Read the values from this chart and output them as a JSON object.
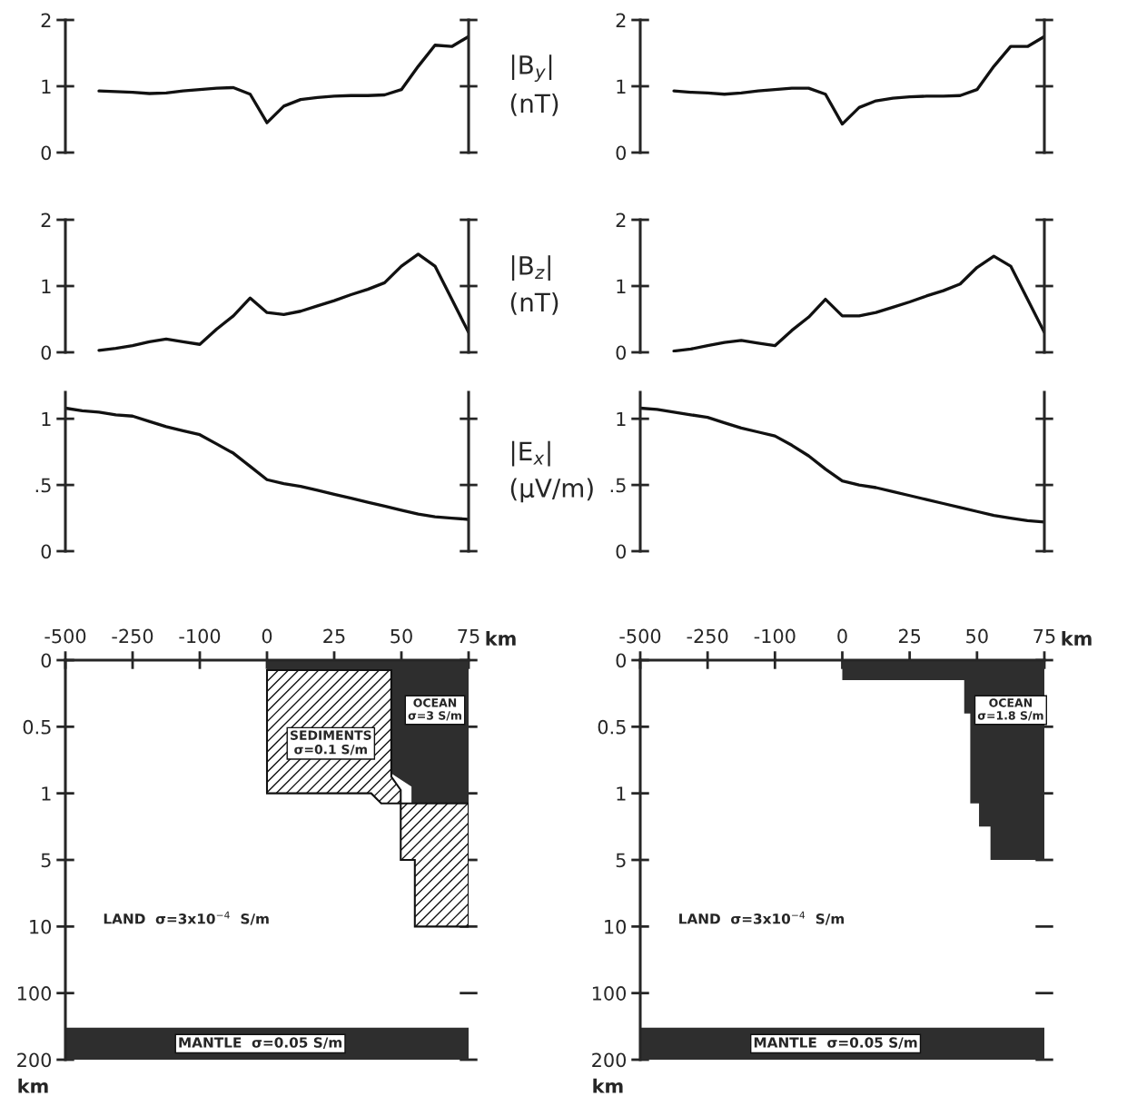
{
  "chart_data": [
    {
      "type": "line",
      "categories": [
        null,
        null,
        null,
        null,
        null,
        null,
        null,
        null,
        null,
        null,
        null,
        null,
        null,
        null,
        null,
        null,
        null,
        null,
        null,
        null,
        null,
        null,
        null,
        null,
        null
      ],
      "series": [
        {
          "color": "#111111",
          "values": [
            null,
            null,
            0.93,
            0.92,
            0.91,
            0.89,
            0.9,
            0.93,
            0.95,
            0.97,
            0.98,
            0.88,
            0.45,
            0.7,
            0.8,
            0.83,
            0.85,
            0.86,
            0.86,
            0.87,
            0.95,
            1.3,
            1.62,
            1.6,
            1.75
          ]
        }
      ],
      "ylim": [
        0,
        2
      ],
      "yticks": [
        0,
        1,
        2
      ],
      "y2label": "|B$_{y}$|\n(nT)",
      "tick_labels": "y",
      "line_style": "solid"
    },
    {
      "type": "line",
      "categories": [
        null,
        null,
        null,
        null,
        null,
        null,
        null,
        null,
        null,
        null,
        null,
        null,
        null,
        null,
        null,
        null,
        null,
        null,
        null,
        null,
        null,
        null,
        null,
        null,
        null
      ],
      "series": [
        {
          "color": "#111111",
          "values": [
            null,
            null,
            0.93,
            0.91,
            0.9,
            0.88,
            0.9,
            0.93,
            0.95,
            0.97,
            0.97,
            0.88,
            0.43,
            0.68,
            0.78,
            0.82,
            0.84,
            0.85,
            0.85,
            0.86,
            0.95,
            1.3,
            1.6,
            1.6,
            1.75
          ]
        }
      ],
      "ylim": [
        0,
        2
      ],
      "yticks": [
        0,
        1,
        2
      ],
      "tick_labels": "y",
      "line_style": "solid"
    },
    {
      "type": "line",
      "categories": [
        null,
        null,
        null,
        null,
        null,
        null,
        null,
        null,
        null,
        null,
        null,
        null,
        null,
        null,
        null,
        null,
        null,
        null,
        null,
        null,
        null,
        null,
        null,
        null,
        null
      ],
      "series": [
        {
          "color": "#111111",
          "values": [
            null,
            null,
            0.03,
            0.06,
            0.1,
            0.16,
            0.2,
            0.16,
            0.12,
            0.35,
            0.55,
            0.82,
            0.6,
            0.57,
            0.62,
            0.7,
            0.78,
            0.87,
            0.95,
            1.05,
            1.3,
            1.48,
            1.3,
            0.8,
            0.3
          ]
        }
      ],
      "ylim": [
        0,
        2
      ],
      "yticks": [
        0,
        1,
        2
      ],
      "y2label": "|B$_{z}$|\n(nT)",
      "tick_labels": "y",
      "line_style": "solid"
    },
    {
      "type": "line",
      "categories": [
        null,
        null,
        null,
        null,
        null,
        null,
        null,
        null,
        null,
        null,
        null,
        null,
        null,
        null,
        null,
        null,
        null,
        null,
        null,
        null,
        null,
        null,
        null,
        null,
        null
      ],
      "series": [
        {
          "color": "#111111",
          "values": [
            null,
            null,
            0.02,
            0.05,
            0.1,
            0.15,
            0.18,
            0.14,
            0.1,
            0.33,
            0.53,
            0.8,
            0.55,
            0.55,
            0.6,
            0.68,
            0.76,
            0.85,
            0.93,
            1.03,
            1.28,
            1.45,
            1.3,
            0.8,
            0.3
          ]
        }
      ],
      "ylim": [
        0,
        2
      ],
      "yticks": [
        0,
        1,
        2
      ],
      "tick_labels": "y",
      "line_style": "solid"
    },
    {
      "type": "line",
      "categories": [
        null,
        null,
        null,
        null,
        null,
        null,
        null,
        null,
        null,
        null,
        null,
        null,
        null,
        null,
        null,
        null,
        null,
        null,
        null,
        null,
        null,
        null,
        null,
        null,
        null
      ],
      "series": [
        {
          "color": "#111111",
          "values": [
            1.08,
            1.06,
            1.05,
            1.03,
            1.02,
            0.98,
            0.94,
            0.91,
            0.88,
            0.81,
            0.74,
            0.64,
            0.54,
            0.51,
            0.49,
            0.46,
            0.43,
            0.4,
            0.37,
            0.34,
            0.31,
            0.28,
            0.26,
            0.25,
            0.24
          ]
        }
      ],
      "ylim": [
        0,
        1.2
      ],
      "yticks": [
        0,
        {
          "value": 0.5,
          "label": ".5"
        },
        1
      ],
      "y2label": "|E$_{x}$|\n(μV/m)",
      "tick_labels": "y",
      "line_style": "solid"
    },
    {
      "type": "line",
      "categories": [
        null,
        null,
        null,
        null,
        null,
        null,
        null,
        null,
        null,
        null,
        null,
        null,
        null,
        null,
        null,
        null,
        null,
        null,
        null,
        null,
        null,
        null,
        null,
        null,
        null
      ],
      "series": [
        {
          "color": "#111111",
          "values": [
            1.08,
            1.07,
            1.05,
            1.03,
            1.01,
            0.97,
            0.93,
            0.9,
            0.87,
            0.8,
            0.72,
            0.62,
            0.53,
            0.5,
            0.48,
            0.45,
            0.42,
            0.39,
            0.36,
            0.33,
            0.3,
            0.27,
            0.25,
            0.23,
            0.22
          ]
        }
      ],
      "ylim": [
        0,
        1.2
      ],
      "yticks": [
        0,
        {
          "value": 0.5,
          "label": ".5"
        },
        1
      ],
      "tick_labels": "y",
      "line_style": "solid"
    },
    {
      "type": "other",
      "categories": [
        "-500",
        "-250",
        "-100",
        "0",
        "25",
        "50",
        "75"
      ],
      "y_categories": [
        "0",
        "0.5",
        "1",
        "5",
        "10",
        "100",
        "200"
      ],
      "xlabel": "km",
      "ylabel": "km",
      "annotations": [
        "OCEAN\nσ=3 S/m",
        "SEDIMENTS\nσ=0.1 S/m",
        "LAND  σ=3x10$^{−4}$  S/m",
        "MANTLE  σ=0.05 S/m"
      ]
    },
    {
      "type": "other",
      "categories": [
        "-500",
        "-250",
        "-100",
        "0",
        "25",
        "50",
        "75"
      ],
      "y_categories": [
        "0",
        "0.5",
        "1",
        "5",
        "10",
        "100",
        "200"
      ],
      "xlabel": "km",
      "ylabel": "km",
      "annotations": [
        "OCEAN\nσ=1.8 S/m",
        "LAND  σ=3x10$^{−4}$  S/m",
        "MANTLE  σ=0.05 S/m"
      ]
    }
  ]
}
